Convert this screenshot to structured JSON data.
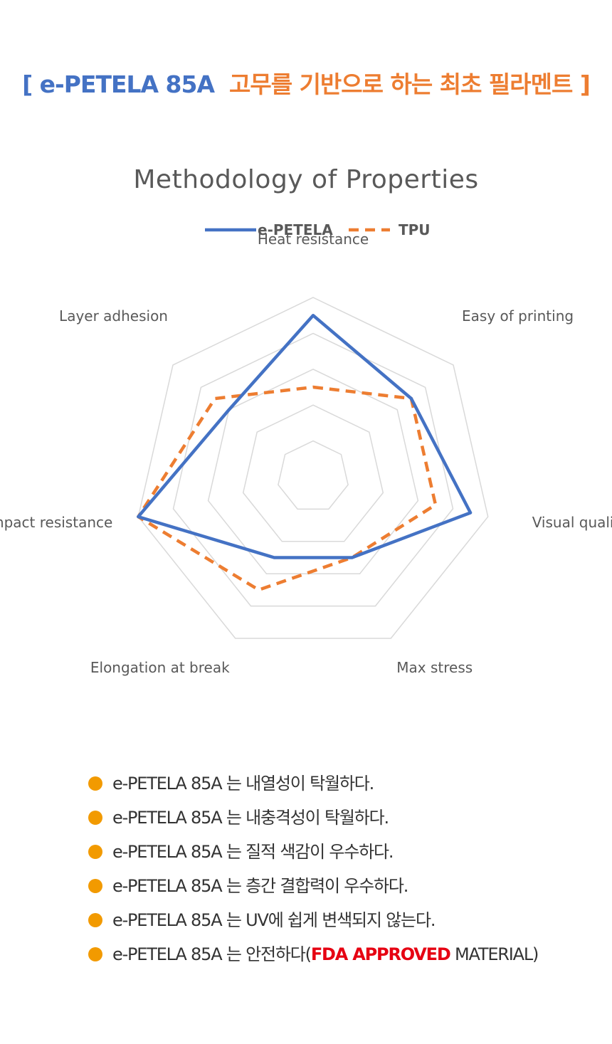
{
  "header": {
    "title_brand": "[ e-PETELA 85A",
    "title_rest": "고무를 기반으로 하는 최초 필라멘트 ]"
  },
  "chart_data": {
    "type": "radar",
    "title": "Methodology of Properties",
    "legend_position": "top",
    "categories": [
      "Heat resistance",
      "Easy of printing",
      "Visual quality",
      "Max stress",
      "Elongation at break",
      "Impact resistance",
      "Layer adhesion"
    ],
    "rmax": 5,
    "grid_levels": [
      1,
      2,
      3,
      4,
      5
    ],
    "series": [
      {
        "name": "e-PETELA",
        "color": "#4472C4",
        "dash": "solid",
        "values": [
          4.5,
          3.5,
          4.5,
          2.5,
          2.5,
          5.0,
          3.0
        ]
      },
      {
        "name": "TPU",
        "color": "#ED7D31",
        "dash": "dashed",
        "values": [
          2.5,
          3.5,
          3.5,
          2.5,
          3.5,
          5.0,
          3.5
        ]
      }
    ]
  },
  "notes": [
    {
      "text": "e-PETELA 85A 는 내열성이 탁월하다."
    },
    {
      "text": "e-PETELA 85A 는 내충격성이 탁월하다."
    },
    {
      "text": "e-PETELA 85A 는 질적 색감이 우수하다."
    },
    {
      "text": "e-PETELA 85A 는 층간 결합력이 우수하다."
    },
    {
      "text": "e-PETELA 85A 는 UV에 쉽게 변색되지 않는다."
    },
    {
      "text": "e-PETELA 85A 는 안전하다(",
      "highlight": "FDA APPROVED",
      "suffix": " MATERIAL)"
    }
  ],
  "colors": {
    "bullet": "#F29A00",
    "highlight": "#E60012",
    "grid": "#D9D9D9"
  }
}
